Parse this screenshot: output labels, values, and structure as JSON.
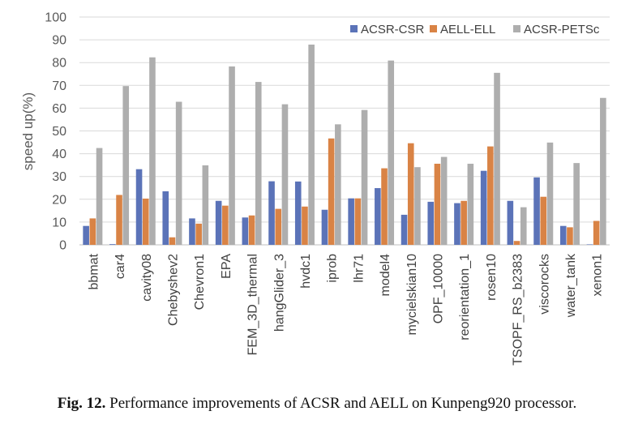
{
  "caption": {
    "label": "Fig. 12.",
    "text": "Performance improvements of ACSR and AELL on Kunpeng920 processor."
  },
  "chart_data": {
    "type": "bar",
    "ylabel": "speed up(%)",
    "xlabel": "",
    "ylim": [
      0,
      100
    ],
    "yticks": [
      0,
      10,
      20,
      30,
      40,
      50,
      60,
      70,
      80,
      90,
      100
    ],
    "grid": true,
    "legend_position": "top-right",
    "categories": [
      "bbmat",
      "car4",
      "cavity08",
      "Chebyshev2",
      "Chevron1",
      "EPA",
      "FEM_3D_thermal",
      "hangGlider_3",
      "hvdc1",
      "iprob",
      "lhr71",
      "model4",
      "mycielskian10",
      "OPF_10000",
      "reorientation_1",
      "rosen10",
      "TSOPF_RS_b2383",
      "viscorocks",
      "water_tank",
      "xenon1"
    ],
    "series": [
      {
        "name": "ACSR-CSR",
        "color": "#5B73B8",
        "values": [
          8.3,
          0.3,
          33.2,
          23.5,
          11.6,
          19.3,
          12.0,
          27.9,
          27.8,
          15.4,
          20.4,
          24.9,
          13.2,
          18.9,
          18.3,
          32.5,
          19.3,
          29.6,
          8.3,
          0.2
        ]
      },
      {
        "name": "AELL-ELL",
        "color": "#D98345",
        "values": [
          11.6,
          21.9,
          20.3,
          3.3,
          9.3,
          17.2,
          12.9,
          15.8,
          16.8,
          46.7,
          20.4,
          33.6,
          44.6,
          35.6,
          19.3,
          43.2,
          1.7,
          21.1,
          7.7,
          10.5
        ]
      },
      {
        "name": "ACSR-PETSc",
        "color": "#AEAEAE",
        "values": [
          42.5,
          69.7,
          82.3,
          62.8,
          34.9,
          78.3,
          71.5,
          61.7,
          87.9,
          52.9,
          59.2,
          80.9,
          34.1,
          38.6,
          35.6,
          75.5,
          16.5,
          44.9,
          35.9,
          64.5
        ]
      }
    ]
  }
}
